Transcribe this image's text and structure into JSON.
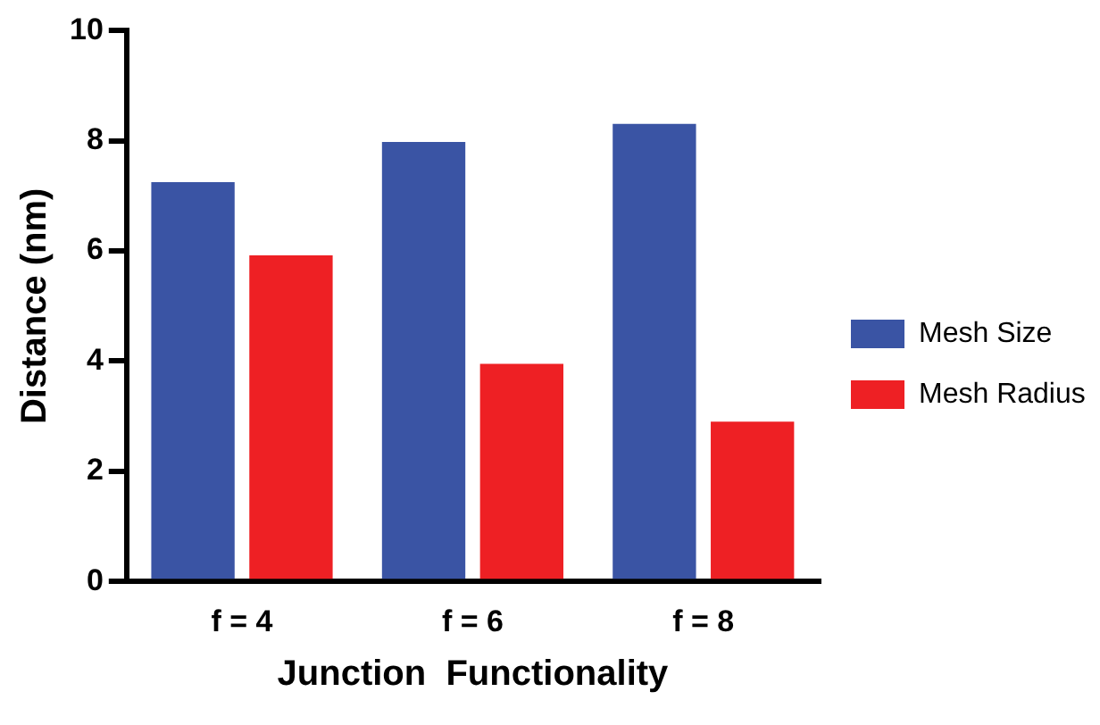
{
  "chart_data": {
    "type": "bar",
    "xlabel": "Junction  Functionality",
    "ylabel": "Distance (nm)",
    "categories": [
      "f = 4",
      "f = 6",
      "f = 8"
    ],
    "series": [
      {
        "name": "Mesh Size",
        "color": "#3a54a4",
        "values": [
          7.25,
          7.98,
          8.31
        ]
      },
      {
        "name": "Mesh Radius",
        "color": "#ee2024",
        "values": [
          5.92,
          3.95,
          2.9
        ]
      }
    ],
    "ylim": [
      0,
      10
    ],
    "yticks": [
      0,
      2,
      4,
      6,
      8,
      10
    ],
    "grid": false,
    "legend": "right"
  }
}
